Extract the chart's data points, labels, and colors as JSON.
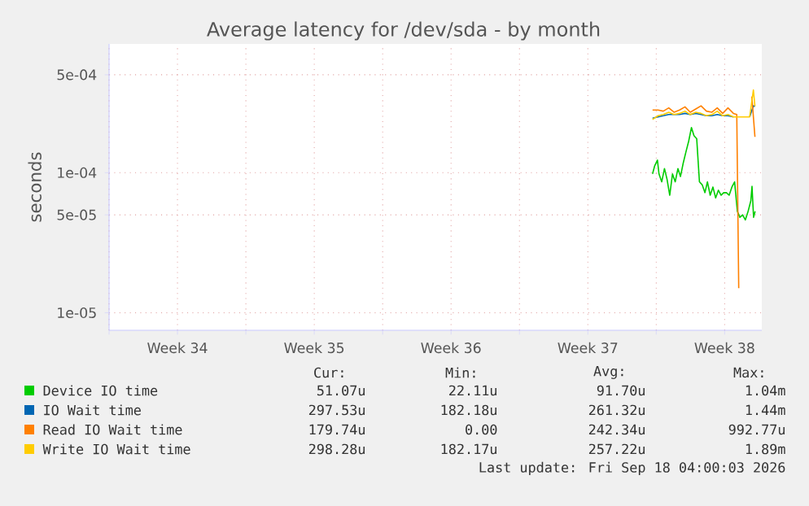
{
  "chart_data": {
    "type": "line",
    "title": "Average latency for /dev/sda - by month",
    "ylabel": "seconds",
    "log": "y",
    "grid": true,
    "legend": "bottom",
    "marker": "none",
    "xlim": [
      "2026-08-16T02:00",
      "2026-09-18T11:36"
    ],
    "ylim": [
      7.5e-06,
      0.00083
    ],
    "xticks": [
      {
        "value": "2026-08-16T02:00",
        "label": null
      },
      {
        "value": "2026-08-19T14:00",
        "label": "Week 34"
      },
      {
        "value": "2026-08-23T02:00",
        "label": null
      },
      {
        "value": "2026-08-26T14:00",
        "label": "Week 35"
      },
      {
        "value": "2026-08-30T02:00",
        "label": null
      },
      {
        "value": "2026-09-02T14:00",
        "label": "Week 36"
      },
      {
        "value": "2026-09-06T02:00",
        "label": null
      },
      {
        "value": "2026-09-09T14:00",
        "label": "Week 37"
      },
      {
        "value": "2026-09-13T02:00",
        "label": null
      },
      {
        "value": "2026-09-16T14:00",
        "label": "Week 38"
      }
    ],
    "yticks": [
      {
        "value": 1e-05,
        "label": "1e-05"
      },
      {
        "value": 5e-05,
        "label": "5e-05"
      },
      {
        "value": 0.0001,
        "label": "1e-04"
      },
      {
        "value": 0.0005,
        "label": "5e-04"
      }
    ],
    "series": [
      {
        "name": "Device IO time",
        "color": "#00cc00",
        "x": [
          "2026-09-12T21:26",
          "2026-09-13T00:05",
          "2026-09-13T03:26",
          "2026-09-13T05:22",
          "2026-09-13T08:43",
          "2026-09-13T12:05",
          "2026-09-13T15:12",
          "2026-09-13T18:34",
          "2026-09-13T21:55",
          "2026-09-14T01:17",
          "2026-09-14T04:38",
          "2026-09-14T07:46",
          "2026-09-14T11:07",
          "2026-09-14T14:29",
          "2026-09-14T17:50",
          "2026-09-14T21:12",
          "2026-09-15T00:19",
          "2026-09-15T03:41",
          "2026-09-15T07:02",
          "2026-09-15T10:24",
          "2026-09-15T13:46",
          "2026-09-15T16:53",
          "2026-09-15T20:14",
          "2026-09-15T23:36",
          "2026-09-16T02:58",
          "2026-09-16T06:19",
          "2026-09-16T09:41",
          "2026-09-16T12:48",
          "2026-09-16T16:10",
          "2026-09-16T19:31",
          "2026-09-16T22:53",
          "2026-09-17T02:14",
          "2026-09-17T05:36",
          "2026-09-17T08:43",
          "2026-09-17T12:05",
          "2026-09-17T15:26",
          "2026-09-17T18:48",
          "2026-09-17T22:10",
          "2026-09-17T23:36",
          "2026-09-18T01:31",
          "2026-09-18T03:26"
        ],
        "values": [
          9.8e-05,
          0.000112,
          0.000123,
          9.8e-05,
          8.6e-05,
          0.000107,
          9e-05,
          6.9e-05,
          9.8e-05,
          8.6e-05,
          0.000107,
          9.4e-05,
          0.000117,
          0.000141,
          0.000168,
          0.00021,
          0.000184,
          0.000175,
          8.6e-05,
          8.2e-05,
          7.2e-05,
          8.6e-05,
          6.9e-05,
          7.9e-05,
          6.6e-05,
          7.5e-05,
          6.9e-05,
          7.2e-05,
          7.2e-05,
          6.9e-05,
          7.9e-05,
          8.6e-05,
          5.3e-05,
          4.8e-05,
          5e-05,
          4.6e-05,
          5.3e-05,
          6.3e-05,
          8e-05,
          4.8e-05,
          5.3e-05
        ]
      },
      {
        "name": "IO Wait time",
        "color": "#0066b3",
        "x": [
          "2026-09-12T21:26",
          "2026-09-13T04:10",
          "2026-09-13T10:38",
          "2026-09-13T17:22",
          "2026-09-13T23:50",
          "2026-09-14T06:34",
          "2026-09-14T13:17",
          "2026-09-14T19:46",
          "2026-09-15T02:29",
          "2026-09-15T08:58",
          "2026-09-15T15:41",
          "2026-09-15T22:24",
          "2026-09-16T04:53",
          "2026-09-16T11:36",
          "2026-09-16T18:05",
          "2026-09-17T00:48",
          "2026-09-17T07:31",
          "2026-09-17T14:00",
          "2026-09-17T20:43",
          "2026-09-18T01:17",
          "2026-09-18T03:12"
        ],
        "values": [
          0.000245,
          0.00025,
          0.000255,
          0.00026,
          0.00026,
          0.00026,
          0.000265,
          0.00026,
          0.000265,
          0.00026,
          0.000255,
          0.000255,
          0.00026,
          0.000255,
          0.000255,
          0.00025,
          null,
          null,
          0.00025,
          0.0003,
          0.000297
        ]
      },
      {
        "name": "Read IO Wait time",
        "color": "#ff8000",
        "x": [
          "2026-09-12T21:26",
          "2026-09-13T04:10",
          "2026-09-13T10:38",
          "2026-09-13T17:22",
          "2026-09-13T23:50",
          "2026-09-14T06:34",
          "2026-09-14T13:17",
          "2026-09-14T19:46",
          "2026-09-15T02:29",
          "2026-09-15T08:58",
          "2026-09-15T15:41",
          "2026-09-15T22:24",
          "2026-09-16T04:53",
          "2026-09-16T11:36",
          "2026-09-16T18:05",
          "2026-09-17T00:48",
          "2026-09-17T04:53",
          "2026-09-17T07:17",
          "2026-09-17T14:00",
          "2026-09-17T20:43",
          "2026-09-17T23:22",
          "2026-09-18T03:12"
        ],
        "values": [
          0.00028,
          0.00028,
          0.000275,
          0.00029,
          0.00027,
          0.00028,
          0.000295,
          0.00027,
          0.000285,
          0.0003,
          0.000275,
          0.00027,
          0.00029,
          0.000265,
          0.00029,
          0.000265,
          0.00026,
          1.5e-05,
          null,
          null,
          0.00035,
          0.00018
        ]
      },
      {
        "name": "Write IO Wait time",
        "color": "#ffcc00",
        "x": [
          "2026-09-12T21:26",
          "2026-09-13T04:10",
          "2026-09-13T10:38",
          "2026-09-13T17:22",
          "2026-09-13T23:50",
          "2026-09-14T06:34",
          "2026-09-14T13:17",
          "2026-09-14T19:46",
          "2026-09-15T02:29",
          "2026-09-15T08:58",
          "2026-09-15T15:41",
          "2026-09-15T22:24",
          "2026-09-16T04:53",
          "2026-09-16T11:36",
          "2026-09-16T18:05",
          "2026-09-17T00:48",
          "2026-09-17T07:31",
          "2026-09-17T14:00",
          "2026-09-17T20:43",
          "2026-09-18T01:17",
          "2026-09-18T03:12"
        ],
        "values": [
          0.00024,
          0.000255,
          0.00026,
          0.00027,
          0.00026,
          0.000265,
          0.000275,
          0.00026,
          0.00027,
          0.000265,
          0.000255,
          0.00026,
          0.000275,
          0.000255,
          0.00026,
          0.00025,
          0.00025,
          0.00025,
          0.00025,
          0.00039,
          0.000298
        ]
      }
    ],
    "annotations": [
      "Cur:",
      "Min:",
      "Avg:",
      "Max:",
      "51.07u",
      "22.11u",
      "91.70u",
      "1.04m",
      "297.53u",
      "182.18u",
      "261.32u",
      "1.44m",
      "179.74u",
      "0.00",
      "242.34u",
      "992.77u",
      "298.28u",
      "182.17u",
      "257.22u",
      "1.89m",
      "Last update: Fri Sep 18 04:00:03 2026"
    ]
  }
}
